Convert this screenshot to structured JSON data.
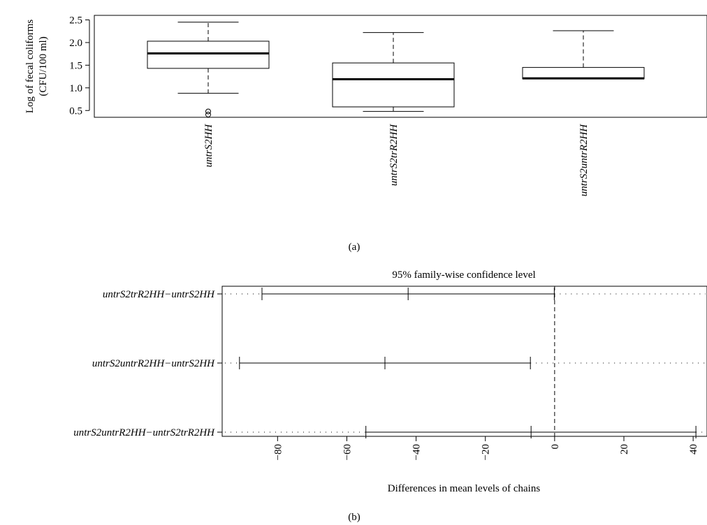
{
  "chart_data": [
    {
      "type": "box",
      "panel_label": "(a)",
      "title": "",
      "ylabel_line1": "Log of fecal coliforms",
      "ylabel_line2": "(CFU/100 ml)",
      "ylim": [
        0.35,
        2.6
      ],
      "yticks": [
        0.5,
        1.0,
        1.5,
        2.0,
        2.5
      ],
      "ytick_labels": [
        "0.5",
        "1.0",
        "1.5",
        "2.0",
        "2.5"
      ],
      "categories": [
        "untrS2HH",
        "untrS2trR2HH",
        "untrS2untrR2HH"
      ],
      "boxes": [
        {
          "name": "untrS2HH",
          "whisker_low": 0.88,
          "q1": 1.43,
          "median": 1.76,
          "q3": 2.03,
          "whisker_high": 2.45,
          "outliers": [
            0.41,
            0.48
          ]
        },
        {
          "name": "untrS2trR2HH",
          "whisker_low": 0.48,
          "q1": 0.58,
          "median": 1.19,
          "q3": 1.55,
          "whisker_high": 2.22,
          "outliers": []
        },
        {
          "name": "untrS2untrR2HH",
          "whisker_low": 1.2,
          "q1": 1.2,
          "median": 1.21,
          "q3": 1.45,
          "whisker_high": 2.26,
          "outliers": []
        }
      ]
    },
    {
      "type": "interval",
      "panel_label": "(b)",
      "title": "95% family-wise confidence level",
      "xlabel": "Differences in mean levels of chains",
      "xlim": [
        -96,
        44
      ],
      "xticks": [
        -80,
        -60,
        -40,
        -20,
        0,
        20,
        40
      ],
      "xtick_labels": [
        "-80",
        "-60",
        "-40",
        "-20",
        "0",
        "20",
        "40"
      ],
      "reference_line": 0,
      "comparisons": [
        {
          "label": "untrS2trR2HH−untrS2HH",
          "lwr": -84.5,
          "diff": -42.3,
          "upr": -0.1
        },
        {
          "label": "untrS2untrR2HH−untrS2HH",
          "lwr": -91.0,
          "diff": -49.0,
          "upr": -7.0
        },
        {
          "label": "untrS2untrR2HH−untrS2trR2HH",
          "lwr": -54.5,
          "diff": -6.8,
          "upr": 40.8
        }
      ]
    }
  ]
}
